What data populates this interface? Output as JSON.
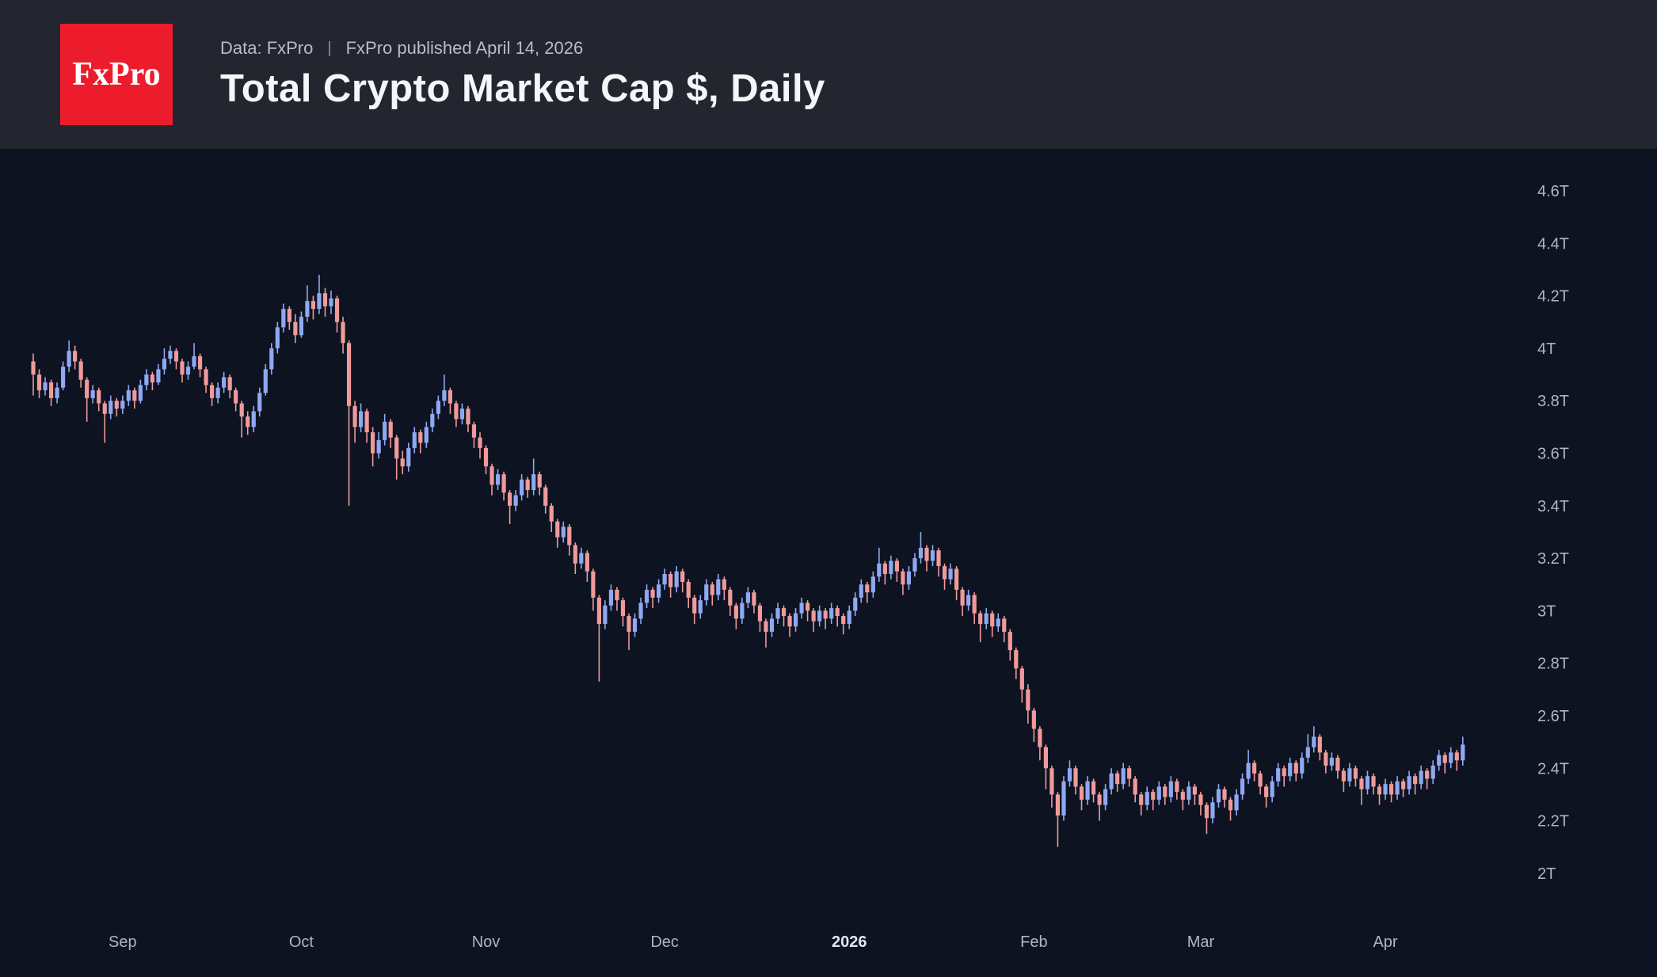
{
  "header": {
    "logo_text": "FxPro",
    "source_label": "Data: FxPro",
    "separator": "|",
    "published_label": "FxPro published April 14, 2026",
    "title": "Total Crypto Market Cap $, Daily"
  },
  "colors": {
    "page_bg": "#0d1321",
    "header_bg": "#23252f",
    "logo_bg": "#ec1c2d",
    "up": "#8fa8f2",
    "down": "#f09a9a",
    "axis_text": "#b2b5be",
    "axis_text_emphasis": "#e3e6ee"
  },
  "chart_data": {
    "type": "candlestick",
    "title": "Total Crypto Market Cap $, Daily",
    "unit": "trillion USD",
    "grid": false,
    "legend": "none",
    "y_axis_side": "right",
    "ylim": [
      1.85,
      4.75
    ],
    "y_ticks": [
      {
        "label": "4.6T",
        "value": 4.6
      },
      {
        "label": "4.4T",
        "value": 4.4
      },
      {
        "label": "4.2T",
        "value": 4.2
      },
      {
        "label": "4T",
        "value": 4.0
      },
      {
        "label": "3.8T",
        "value": 3.8
      },
      {
        "label": "3.6T",
        "value": 3.6
      },
      {
        "label": "3.4T",
        "value": 3.4
      },
      {
        "label": "3.2T",
        "value": 3.2
      },
      {
        "label": "3T",
        "value": 3.0
      },
      {
        "label": "2.8T",
        "value": 2.8
      },
      {
        "label": "2.6T",
        "value": 2.6
      },
      {
        "label": "2.4T",
        "value": 2.4
      },
      {
        "label": "2.2T",
        "value": 2.2
      },
      {
        "label": "2T",
        "value": 2.0
      }
    ],
    "x_labels": [
      {
        "label": "Sep",
        "index": 15,
        "emphasis": false
      },
      {
        "label": "Oct",
        "index": 45,
        "emphasis": false
      },
      {
        "label": "Nov",
        "index": 76,
        "emphasis": false
      },
      {
        "label": "Dec",
        "index": 106,
        "emphasis": false
      },
      {
        "label": "2026",
        "index": 137,
        "emphasis": true
      },
      {
        "label": "Feb",
        "index": 168,
        "emphasis": false
      },
      {
        "label": "Mar",
        "index": 196,
        "emphasis": false
      },
      {
        "label": "Apr",
        "index": 227,
        "emphasis": false
      }
    ],
    "candle_format": [
      "open",
      "high",
      "low",
      "close"
    ],
    "candles": [
      [
        3.95,
        3.98,
        3.82,
        3.9
      ],
      [
        3.9,
        3.92,
        3.81,
        3.84
      ],
      [
        3.84,
        3.89,
        3.82,
        3.87
      ],
      [
        3.87,
        3.88,
        3.78,
        3.81
      ],
      [
        3.81,
        3.87,
        3.79,
        3.85
      ],
      [
        3.85,
        3.95,
        3.84,
        3.93
      ],
      [
        3.93,
        4.03,
        3.91,
        3.99
      ],
      [
        3.99,
        4.01,
        3.92,
        3.95
      ],
      [
        3.95,
        3.96,
        3.85,
        3.88
      ],
      [
        3.88,
        3.89,
        3.72,
        3.81
      ],
      [
        3.81,
        3.86,
        3.79,
        3.84
      ],
      [
        3.84,
        3.85,
        3.76,
        3.79
      ],
      [
        3.79,
        3.8,
        3.64,
        3.75
      ],
      [
        3.75,
        3.82,
        3.73,
        3.8
      ],
      [
        3.8,
        3.81,
        3.74,
        3.77
      ],
      [
        3.77,
        3.82,
        3.75,
        3.8
      ],
      [
        3.8,
        3.86,
        3.78,
        3.84
      ],
      [
        3.84,
        3.85,
        3.77,
        3.8
      ],
      [
        3.8,
        3.88,
        3.79,
        3.86
      ],
      [
        3.86,
        3.92,
        3.84,
        3.9
      ],
      [
        3.9,
        3.91,
        3.84,
        3.87
      ],
      [
        3.87,
        3.94,
        3.86,
        3.92
      ],
      [
        3.92,
        4.0,
        3.9,
        3.96
      ],
      [
        3.96,
        4.01,
        3.94,
        3.99
      ],
      [
        3.99,
        4.0,
        3.92,
        3.95
      ],
      [
        3.95,
        3.96,
        3.87,
        3.9
      ],
      [
        3.9,
        3.95,
        3.88,
        3.93
      ],
      [
        3.93,
        4.02,
        3.92,
        3.97
      ],
      [
        3.97,
        3.98,
        3.89,
        3.92
      ],
      [
        3.92,
        3.93,
        3.83,
        3.86
      ],
      [
        3.86,
        3.87,
        3.78,
        3.81
      ],
      [
        3.81,
        3.87,
        3.79,
        3.85
      ],
      [
        3.85,
        3.91,
        3.83,
        3.89
      ],
      [
        3.89,
        3.9,
        3.81,
        3.84
      ],
      [
        3.84,
        3.85,
        3.76,
        3.79
      ],
      [
        3.79,
        3.8,
        3.66,
        3.74
      ],
      [
        3.74,
        3.76,
        3.67,
        3.7
      ],
      [
        3.7,
        3.78,
        3.68,
        3.76
      ],
      [
        3.76,
        3.85,
        3.74,
        3.83
      ],
      [
        3.83,
        3.94,
        3.82,
        3.92
      ],
      [
        3.92,
        4.02,
        3.9,
        4.0
      ],
      [
        4.0,
        4.1,
        3.98,
        4.08
      ],
      [
        4.08,
        4.17,
        4.06,
        4.15
      ],
      [
        4.15,
        4.16,
        4.07,
        4.1
      ],
      [
        4.1,
        4.13,
        4.02,
        4.05
      ],
      [
        4.05,
        4.14,
        4.04,
        4.12
      ],
      [
        4.12,
        4.24,
        4.1,
        4.18
      ],
      [
        4.18,
        4.2,
        4.11,
        4.15
      ],
      [
        4.15,
        4.28,
        4.13,
        4.21
      ],
      [
        4.21,
        4.23,
        4.12,
        4.16
      ],
      [
        4.16,
        4.22,
        4.13,
        4.19
      ],
      [
        4.19,
        4.2,
        4.06,
        4.1
      ],
      [
        4.1,
        4.12,
        3.98,
        4.02
      ],
      [
        4.02,
        4.03,
        3.4,
        3.78
      ],
      [
        3.78,
        3.8,
        3.64,
        3.7
      ],
      [
        3.7,
        3.79,
        3.68,
        3.76
      ],
      [
        3.76,
        3.77,
        3.64,
        3.68
      ],
      [
        3.68,
        3.7,
        3.55,
        3.6
      ],
      [
        3.6,
        3.68,
        3.58,
        3.65
      ],
      [
        3.65,
        3.75,
        3.63,
        3.72
      ],
      [
        3.72,
        3.73,
        3.62,
        3.66
      ],
      [
        3.66,
        3.67,
        3.5,
        3.58
      ],
      [
        3.58,
        3.61,
        3.52,
        3.55
      ],
      [
        3.55,
        3.64,
        3.53,
        3.62
      ],
      [
        3.62,
        3.7,
        3.6,
        3.68
      ],
      [
        3.68,
        3.69,
        3.6,
        3.64
      ],
      [
        3.64,
        3.72,
        3.62,
        3.7
      ],
      [
        3.7,
        3.77,
        3.68,
        3.75
      ],
      [
        3.75,
        3.82,
        3.73,
        3.8
      ],
      [
        3.8,
        3.9,
        3.78,
        3.84
      ],
      [
        3.84,
        3.85,
        3.75,
        3.79
      ],
      [
        3.79,
        3.8,
        3.7,
        3.73
      ],
      [
        3.73,
        3.79,
        3.71,
        3.77
      ],
      [
        3.77,
        3.78,
        3.68,
        3.71
      ],
      [
        3.71,
        3.72,
        3.62,
        3.66
      ],
      [
        3.66,
        3.68,
        3.58,
        3.62
      ],
      [
        3.62,
        3.63,
        3.52,
        3.55
      ],
      [
        3.55,
        3.56,
        3.44,
        3.48
      ],
      [
        3.48,
        3.54,
        3.46,
        3.52
      ],
      [
        3.52,
        3.53,
        3.42,
        3.45
      ],
      [
        3.45,
        3.46,
        3.33,
        3.4
      ],
      [
        3.4,
        3.46,
        3.38,
        3.44
      ],
      [
        3.44,
        3.52,
        3.42,
        3.5
      ],
      [
        3.5,
        3.51,
        3.43,
        3.46
      ],
      [
        3.46,
        3.58,
        3.44,
        3.52
      ],
      [
        3.52,
        3.53,
        3.44,
        3.47
      ],
      [
        3.47,
        3.48,
        3.37,
        3.4
      ],
      [
        3.4,
        3.41,
        3.3,
        3.34
      ],
      [
        3.34,
        3.35,
        3.24,
        3.28
      ],
      [
        3.28,
        3.34,
        3.26,
        3.32
      ],
      [
        3.32,
        3.33,
        3.21,
        3.25
      ],
      [
        3.25,
        3.26,
        3.14,
        3.18
      ],
      [
        3.18,
        3.24,
        3.16,
        3.22
      ],
      [
        3.22,
        3.23,
        3.11,
        3.15
      ],
      [
        3.15,
        3.16,
        3.0,
        3.05
      ],
      [
        3.05,
        3.06,
        2.73,
        2.95
      ],
      [
        2.95,
        3.04,
        2.93,
        3.02
      ],
      [
        3.02,
        3.1,
        3.0,
        3.08
      ],
      [
        3.08,
        3.09,
        3.0,
        3.04
      ],
      [
        3.04,
        3.05,
        2.94,
        2.98
      ],
      [
        2.98,
        2.99,
        2.85,
        2.92
      ],
      [
        2.92,
        2.99,
        2.9,
        2.97
      ],
      [
        2.97,
        3.05,
        2.95,
        3.03
      ],
      [
        3.03,
        3.1,
        3.01,
        3.08
      ],
      [
        3.08,
        3.09,
        3.01,
        3.05
      ],
      [
        3.05,
        3.12,
        3.03,
        3.1
      ],
      [
        3.1,
        3.16,
        3.08,
        3.14
      ],
      [
        3.14,
        3.15,
        3.05,
        3.09
      ],
      [
        3.09,
        3.17,
        3.07,
        3.15
      ],
      [
        3.15,
        3.16,
        3.07,
        3.11
      ],
      [
        3.11,
        3.12,
        3.01,
        3.05
      ],
      [
        3.05,
        3.06,
        2.95,
        2.99
      ],
      [
        2.99,
        3.06,
        2.97,
        3.04
      ],
      [
        3.04,
        3.12,
        3.02,
        3.1
      ],
      [
        3.1,
        3.11,
        3.02,
        3.06
      ],
      [
        3.06,
        3.14,
        3.04,
        3.12
      ],
      [
        3.12,
        3.13,
        3.04,
        3.08
      ],
      [
        3.08,
        3.09,
        2.98,
        3.02
      ],
      [
        3.02,
        3.03,
        2.93,
        2.97
      ],
      [
        2.97,
        3.05,
        2.95,
        3.03
      ],
      [
        3.03,
        3.09,
        3.01,
        3.07
      ],
      [
        3.07,
        3.08,
        2.99,
        3.02
      ],
      [
        3.02,
        3.03,
        2.92,
        2.96
      ],
      [
        2.96,
        2.97,
        2.86,
        2.92
      ],
      [
        2.92,
        2.99,
        2.9,
        2.97
      ],
      [
        2.97,
        3.03,
        2.95,
        3.01
      ],
      [
        3.01,
        3.02,
        2.94,
        2.98
      ],
      [
        2.98,
        2.99,
        2.9,
        2.94
      ],
      [
        2.94,
        3.01,
        2.92,
        2.99
      ],
      [
        2.99,
        3.05,
        2.97,
        3.03
      ],
      [
        3.03,
        3.04,
        2.96,
        3.0
      ],
      [
        3.0,
        3.01,
        2.92,
        2.96
      ],
      [
        2.96,
        3.02,
        2.94,
        3.0
      ],
      [
        3.0,
        3.01,
        2.93,
        2.97
      ],
      [
        2.97,
        3.03,
        2.95,
        3.01
      ],
      [
        3.01,
        3.02,
        2.94,
        2.98
      ],
      [
        2.98,
        2.99,
        2.91,
        2.95
      ],
      [
        2.95,
        3.02,
        2.93,
        3.0
      ],
      [
        3.0,
        3.07,
        2.98,
        3.05
      ],
      [
        3.05,
        3.12,
        3.03,
        3.1
      ],
      [
        3.1,
        3.11,
        3.03,
        3.07
      ],
      [
        3.07,
        3.15,
        3.05,
        3.13
      ],
      [
        3.13,
        3.24,
        3.11,
        3.18
      ],
      [
        3.18,
        3.19,
        3.1,
        3.14
      ],
      [
        3.14,
        3.21,
        3.12,
        3.19
      ],
      [
        3.19,
        3.2,
        3.11,
        3.15
      ],
      [
        3.15,
        3.16,
        3.06,
        3.1
      ],
      [
        3.1,
        3.17,
        3.08,
        3.15
      ],
      [
        3.15,
        3.22,
        3.13,
        3.2
      ],
      [
        3.2,
        3.3,
        3.18,
        3.24
      ],
      [
        3.24,
        3.25,
        3.15,
        3.19
      ],
      [
        3.19,
        3.25,
        3.17,
        3.23
      ],
      [
        3.23,
        3.24,
        3.13,
        3.17
      ],
      [
        3.17,
        3.18,
        3.08,
        3.12
      ],
      [
        3.12,
        3.18,
        3.1,
        3.16
      ],
      [
        3.16,
        3.17,
        3.04,
        3.08
      ],
      [
        3.08,
        3.09,
        2.98,
        3.02
      ],
      [
        3.02,
        3.08,
        3.0,
        3.06
      ],
      [
        3.06,
        3.07,
        2.95,
        2.99
      ],
      [
        2.99,
        3.0,
        2.88,
        2.95
      ],
      [
        2.95,
        3.01,
        2.93,
        2.99
      ],
      [
        2.99,
        3.0,
        2.9,
        2.94
      ],
      [
        2.94,
        2.99,
        2.92,
        2.97
      ],
      [
        2.97,
        2.98,
        2.88,
        2.92
      ],
      [
        2.92,
        2.93,
        2.81,
        2.85
      ],
      [
        2.85,
        2.86,
        2.74,
        2.78
      ],
      [
        2.78,
        2.79,
        2.65,
        2.7
      ],
      [
        2.7,
        2.72,
        2.57,
        2.62
      ],
      [
        2.62,
        2.63,
        2.5,
        2.55
      ],
      [
        2.55,
        2.56,
        2.43,
        2.48
      ],
      [
        2.48,
        2.49,
        2.32,
        2.4
      ],
      [
        2.4,
        2.41,
        2.25,
        2.3
      ],
      [
        2.3,
        2.31,
        2.1,
        2.22
      ],
      [
        2.22,
        2.37,
        2.2,
        2.35
      ],
      [
        2.35,
        2.43,
        2.33,
        2.4
      ],
      [
        2.4,
        2.41,
        2.3,
        2.33
      ],
      [
        2.33,
        2.34,
        2.24,
        2.28
      ],
      [
        2.28,
        2.37,
        2.26,
        2.35
      ],
      [
        2.35,
        2.36,
        2.27,
        2.3
      ],
      [
        2.3,
        2.31,
        2.2,
        2.26
      ],
      [
        2.26,
        2.34,
        2.24,
        2.32
      ],
      [
        2.32,
        2.4,
        2.3,
        2.38
      ],
      [
        2.38,
        2.39,
        2.31,
        2.34
      ],
      [
        2.34,
        2.42,
        2.32,
        2.4
      ],
      [
        2.4,
        2.41,
        2.33,
        2.36
      ],
      [
        2.36,
        2.37,
        2.27,
        2.3
      ],
      [
        2.3,
        2.31,
        2.22,
        2.26
      ],
      [
        2.26,
        2.33,
        2.24,
        2.31
      ],
      [
        2.31,
        2.32,
        2.24,
        2.28
      ],
      [
        2.28,
        2.35,
        2.26,
        2.33
      ],
      [
        2.33,
        2.34,
        2.26,
        2.29
      ],
      [
        2.29,
        2.37,
        2.27,
        2.35
      ],
      [
        2.35,
        2.36,
        2.28,
        2.31
      ],
      [
        2.31,
        2.32,
        2.24,
        2.28
      ],
      [
        2.28,
        2.35,
        2.26,
        2.33
      ],
      [
        2.33,
        2.34,
        2.26,
        2.3
      ],
      [
        2.3,
        2.31,
        2.22,
        2.26
      ],
      [
        2.26,
        2.27,
        2.15,
        2.21
      ],
      [
        2.21,
        2.29,
        2.19,
        2.27
      ],
      [
        2.27,
        2.34,
        2.25,
        2.32
      ],
      [
        2.32,
        2.33,
        2.25,
        2.28
      ],
      [
        2.28,
        2.29,
        2.2,
        2.24
      ],
      [
        2.24,
        2.32,
        2.22,
        2.3
      ],
      [
        2.3,
        2.38,
        2.28,
        2.36
      ],
      [
        2.36,
        2.47,
        2.34,
        2.42
      ],
      [
        2.42,
        2.43,
        2.35,
        2.38
      ],
      [
        2.38,
        2.39,
        2.3,
        2.33
      ],
      [
        2.33,
        2.34,
        2.25,
        2.29
      ],
      [
        2.29,
        2.37,
        2.27,
        2.35
      ],
      [
        2.35,
        2.42,
        2.33,
        2.4
      ],
      [
        2.4,
        2.41,
        2.33,
        2.37
      ],
      [
        2.37,
        2.44,
        2.35,
        2.42
      ],
      [
        2.42,
        2.43,
        2.35,
        2.38
      ],
      [
        2.38,
        2.46,
        2.36,
        2.44
      ],
      [
        2.44,
        2.53,
        2.42,
        2.48
      ],
      [
        2.48,
        2.56,
        2.46,
        2.52
      ],
      [
        2.52,
        2.53,
        2.43,
        2.46
      ],
      [
        2.46,
        2.47,
        2.38,
        2.41
      ],
      [
        2.41,
        2.46,
        2.39,
        2.44
      ],
      [
        2.44,
        2.45,
        2.36,
        2.39
      ],
      [
        2.39,
        2.4,
        2.31,
        2.35
      ],
      [
        2.35,
        2.42,
        2.33,
        2.4
      ],
      [
        2.4,
        2.41,
        2.33,
        2.36
      ],
      [
        2.36,
        2.37,
        2.26,
        2.32
      ],
      [
        2.32,
        2.39,
        2.3,
        2.37
      ],
      [
        2.37,
        2.38,
        2.3,
        2.33
      ],
      [
        2.33,
        2.34,
        2.26,
        2.3
      ],
      [
        2.3,
        2.36,
        2.28,
        2.34
      ],
      [
        2.34,
        2.35,
        2.27,
        2.3
      ],
      [
        2.3,
        2.37,
        2.28,
        2.35
      ],
      [
        2.35,
        2.36,
        2.29,
        2.32
      ],
      [
        2.32,
        2.39,
        2.3,
        2.37
      ],
      [
        2.37,
        2.38,
        2.3,
        2.34
      ],
      [
        2.34,
        2.41,
        2.32,
        2.39
      ],
      [
        2.39,
        2.4,
        2.32,
        2.36
      ],
      [
        2.36,
        2.43,
        2.34,
        2.41
      ],
      [
        2.41,
        2.47,
        2.39,
        2.45
      ],
      [
        2.45,
        2.46,
        2.38,
        2.42
      ],
      [
        2.42,
        2.48,
        2.4,
        2.46
      ],
      [
        2.46,
        2.47,
        2.39,
        2.43
      ],
      [
        2.43,
        2.52,
        2.41,
        2.49
      ]
    ]
  }
}
